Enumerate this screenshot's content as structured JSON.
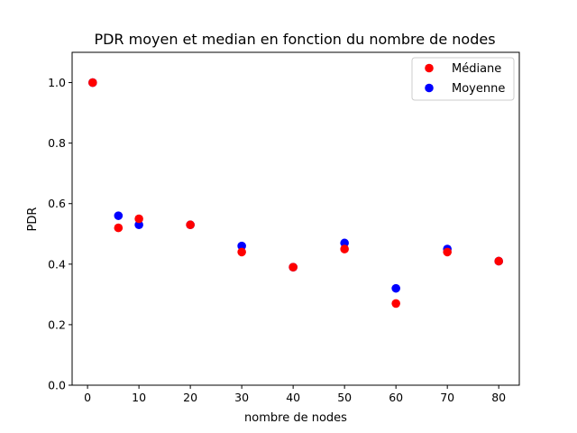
{
  "chart_data": {
    "type": "scatter",
    "title": "PDR moyen et median en fonction du nombre de nodes",
    "xlabel": "nombre de nodes",
    "ylabel": "PDR",
    "xlim": [
      -3,
      84
    ],
    "ylim": [
      0,
      1.1
    ],
    "xticks": [
      0,
      10,
      20,
      30,
      40,
      50,
      60,
      70,
      80
    ],
    "yticks": [
      0.0,
      0.2,
      0.4,
      0.6,
      0.8,
      1.0
    ],
    "xtick_labels": [
      "0",
      "10",
      "20",
      "30",
      "40",
      "50",
      "60",
      "70",
      "80"
    ],
    "ytick_labels": [
      "0.0",
      "0.2",
      "0.4",
      "0.6",
      "0.8",
      "1.0"
    ],
    "grid": false,
    "legend_position": "top-right",
    "series": [
      {
        "name": "Moyenne",
        "color": "#0000ff",
        "x": [
          1,
          6,
          10,
          20,
          30,
          40,
          50,
          60,
          70,
          80
        ],
        "y": [
          1.0,
          0.56,
          0.53,
          0.53,
          0.46,
          0.39,
          0.47,
          0.32,
          0.45,
          0.41
        ]
      },
      {
        "name": "Médiane",
        "color": "#ff0000",
        "x": [
          1,
          6,
          10,
          20,
          30,
          40,
          50,
          60,
          70,
          80
        ],
        "y": [
          1.0,
          0.52,
          0.55,
          0.53,
          0.44,
          0.39,
          0.45,
          0.27,
          0.44,
          0.41
        ]
      }
    ],
    "legend_order": [
      "Médiane",
      "Moyenne"
    ]
  }
}
